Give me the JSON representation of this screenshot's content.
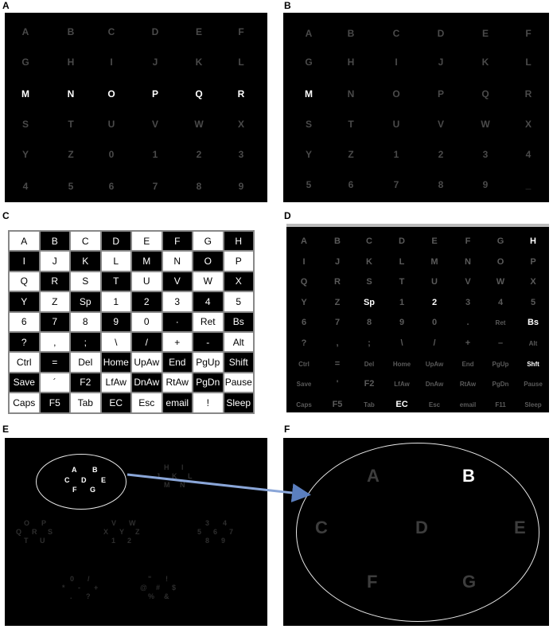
{
  "panel_labels": [
    "A",
    "B",
    "C",
    "D",
    "E",
    "F"
  ],
  "panelA": {
    "rows": [
      [
        "A",
        "B",
        "C",
        "D",
        "E",
        "F"
      ],
      [
        "G",
        "H",
        "I",
        "J",
        "K",
        "L"
      ],
      [
        "M",
        "N",
        "O",
        "P",
        "Q",
        "R"
      ],
      [
        "S",
        "T",
        "U",
        "V",
        "W",
        "X"
      ],
      [
        "Y",
        "Z",
        "0",
        "1",
        "2",
        "3"
      ],
      [
        "4",
        "5",
        "6",
        "7",
        "8",
        "9"
      ]
    ],
    "highlighted_row": 2
  },
  "panelB": {
    "rows": [
      [
        "A",
        "B",
        "C",
        "D",
        "E",
        "F"
      ],
      [
        "G",
        "H",
        "I",
        "J",
        "K",
        "L"
      ],
      [
        "M",
        "N",
        "O",
        "P",
        "Q",
        "R"
      ],
      [
        "S",
        "T",
        "U",
        "V",
        "W",
        "X"
      ],
      [
        "Y",
        "Z",
        "1",
        "2",
        "3",
        "4"
      ],
      [
        "5",
        "6",
        "7",
        "8",
        "9",
        "_"
      ]
    ],
    "highlighted_cells": [
      "2,0"
    ]
  },
  "panelC": {
    "rows": [
      [
        "A",
        "B",
        "C",
        "D",
        "E",
        "F",
        "G",
        "H"
      ],
      [
        "I",
        "J",
        "K",
        "L",
        "M",
        "N",
        "O",
        "P"
      ],
      [
        "Q",
        "R",
        "S",
        "T",
        "U",
        "V",
        "W",
        "X"
      ],
      [
        "Y",
        "Z",
        "Sp",
        "1",
        "2",
        "3",
        "4",
        "5"
      ],
      [
        "6",
        "7",
        "8",
        "9",
        "0",
        "·",
        "Ret",
        "Bs"
      ],
      [
        "?",
        ",",
        ";",
        "\\",
        "/",
        "+",
        "-",
        "Alt"
      ],
      [
        "Ctrl",
        "=",
        "Del",
        "Home",
        "UpAw",
        "End",
        "PgUp",
        "Shift"
      ],
      [
        "Save",
        "´",
        "F2",
        "LfAw",
        "DnAw",
        "RtAw",
        "PgDn",
        "Pause"
      ],
      [
        "Caps",
        "F5",
        "Tab",
        "EC",
        "Esc",
        "email",
        "!",
        "Sleep"
      ]
    ]
  },
  "panelD": {
    "rows": [
      [
        "A",
        "B",
        "C",
        "D",
        "E",
        "F",
        "G",
        "H"
      ],
      [
        "I",
        "J",
        "K",
        "L",
        "M",
        "N",
        "O",
        "P"
      ],
      [
        "Q",
        "R",
        "S",
        "T",
        "U",
        "V",
        "W",
        "X"
      ],
      [
        "Y",
        "Z",
        "Sp",
        "1",
        "2",
        "3",
        "4",
        "5"
      ],
      [
        "6",
        "7",
        "8",
        "9",
        "0",
        ".",
        "Ret",
        "Bs"
      ],
      [
        "?",
        ",",
        ";",
        "\\",
        "/",
        "+",
        "–",
        "Alt"
      ],
      [
        "Ctrl",
        "=",
        "Del",
        "Home",
        "UpAw",
        "End",
        "PgUp",
        "Shft"
      ],
      [
        "Save",
        "'",
        "F2",
        "LfAw",
        "DnAw",
        "RtAw",
        "PgDn",
        "Pause"
      ],
      [
        "Caps",
        "F5",
        "Tab",
        "EC",
        "Esc",
        "email",
        "F11",
        "Sleep"
      ]
    ],
    "highlighted_cells": [
      "0,7",
      "3,2",
      "3,4",
      "4,7",
      "6,7",
      "8,3"
    ]
  },
  "panelE": {
    "circle_letters": [
      "A",
      "B",
      "C",
      "D",
      "E",
      "F",
      "G"
    ],
    "faint_groups": [
      [
        "H",
        "I",
        "J",
        "K",
        "L",
        "M",
        "N"
      ],
      [
        "O",
        "P",
        "Q",
        "R",
        "S",
        "T",
        "U"
      ],
      [
        "V",
        "W",
        "X",
        "Y",
        "Z",
        "1",
        "2"
      ],
      [
        "3",
        "4",
        "5",
        "6",
        "7",
        "8",
        "9"
      ],
      [
        "0",
        "/",
        "*",
        "-",
        "+",
        ".",
        "?"
      ],
      [
        "\"",
        "!",
        "@",
        "#",
        "$",
        "%",
        "&"
      ]
    ]
  },
  "panelF": {
    "letters": [
      "A",
      "B",
      "C",
      "D",
      "E",
      "F",
      "G"
    ],
    "highlighted": "B"
  }
}
